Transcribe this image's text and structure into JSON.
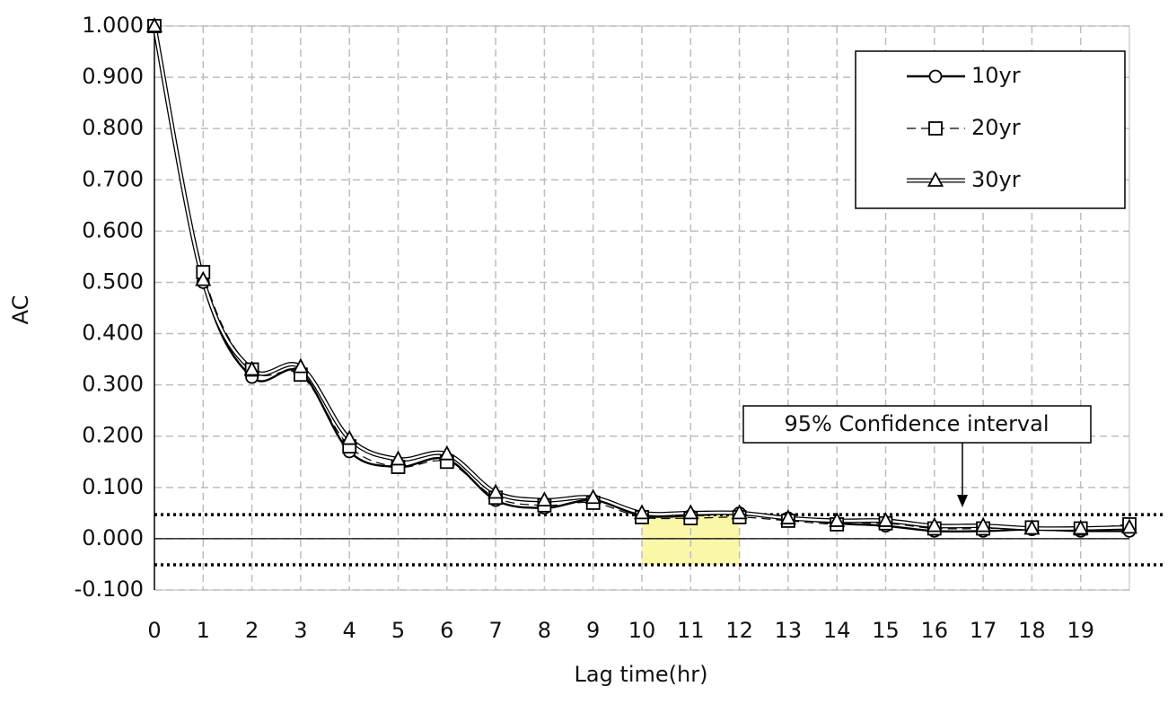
{
  "chart_data": {
    "type": "line",
    "x_label": "Lag time(hr)",
    "y_label": "AC",
    "x": [
      0,
      1,
      2,
      3,
      4,
      5,
      6,
      7,
      8,
      9,
      10,
      11,
      12,
      13,
      14,
      15,
      16,
      17,
      18,
      19,
      20
    ],
    "series": [
      {
        "name": "10yr",
        "color": "#000000",
        "line_style": "solid",
        "marker": "circle",
        "values": [
          1.0,
          0.5,
          0.315,
          0.325,
          0.17,
          0.14,
          0.155,
          0.075,
          0.06,
          0.075,
          0.045,
          0.045,
          0.05,
          0.04,
          0.03,
          0.025,
          0.015,
          0.015,
          0.018,
          0.015,
          0.015
        ]
      },
      {
        "name": "20yr",
        "color": "#000000",
        "line_style": "dashed",
        "marker": "square",
        "values": [
          1.0,
          0.52,
          0.33,
          0.32,
          0.18,
          0.14,
          0.15,
          0.08,
          0.065,
          0.07,
          0.042,
          0.04,
          0.042,
          0.035,
          0.028,
          0.03,
          0.02,
          0.02,
          0.022,
          0.02,
          0.028
        ]
      },
      {
        "name": "30yr",
        "color": "#000000",
        "line_style": "double",
        "marker": "triangle",
        "values": [
          1.0,
          0.505,
          0.33,
          0.335,
          0.195,
          0.155,
          0.165,
          0.09,
          0.075,
          0.08,
          0.05,
          0.05,
          0.05,
          0.04,
          0.035,
          0.035,
          0.025,
          0.025,
          0.02,
          0.02,
          0.022
        ]
      }
    ],
    "xlim": [
      0,
      20
    ],
    "xticks": [
      0,
      1,
      2,
      3,
      4,
      5,
      6,
      7,
      8,
      9,
      10,
      11,
      12,
      13,
      14,
      15,
      16,
      17,
      18,
      19
    ],
    "ylim": [
      -0.1,
      1.0
    ],
    "yticks": [
      {
        "value": -0.1,
        "label": "-0.100"
      },
      {
        "value": 0,
        "label": "0.000"
      },
      {
        "value": 0.1,
        "label": "0.100"
      },
      {
        "value": 0.2,
        "label": "0.200"
      },
      {
        "value": 0.3,
        "label": "0.300"
      },
      {
        "value": 0.4,
        "label": "0.400"
      },
      {
        "value": 0.5,
        "label": "0.500"
      },
      {
        "value": 0.6,
        "label": "0.600"
      },
      {
        "value": 0.7,
        "label": "0.700"
      },
      {
        "value": 0.8,
        "label": "0.800"
      },
      {
        "value": 0.9,
        "label": "0.900"
      },
      {
        "value": 1.0,
        "label": "1.000"
      }
    ],
    "grid": true,
    "legend_position": "upper right",
    "confidence_lines": [
      0.047,
      -0.051
    ],
    "highlight_x": [
      10,
      12
    ],
    "highlight_color": "#fbf7a8",
    "annotation": "95% Confidence interval"
  }
}
